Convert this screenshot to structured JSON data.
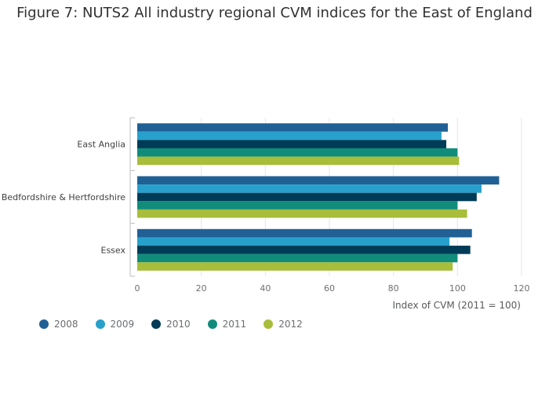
{
  "chart_data": {
    "type": "bar",
    "orientation": "horizontal",
    "title": "Figure 7: NUTS2 All industry regional CVM indices for the East of England",
    "xlabel": "Index of CVM (2011 = 100)",
    "ylabel": "",
    "xlim": [
      0,
      120
    ],
    "xticks": [
      "0",
      "20",
      "40",
      "60",
      "80",
      "100",
      "120"
    ],
    "categories": [
      "East Anglia",
      "Bedfordshire & Hertfordshire",
      "Essex"
    ],
    "series": [
      {
        "name": "2008",
        "color": "#206095",
        "values": [
          97,
          113,
          104.5
        ]
      },
      {
        "name": "2009",
        "color": "#27a0cc",
        "values": [
          95,
          107.5,
          97.5
        ]
      },
      {
        "name": "2010",
        "color": "#003c57",
        "values": [
          96.5,
          106,
          104
        ]
      },
      {
        "name": "2011",
        "color": "#118c7b",
        "values": [
          100,
          100,
          100
        ]
      },
      {
        "name": "2012",
        "color": "#a8bd3a",
        "values": [
          100.5,
          103,
          98.5
        ]
      }
    ],
    "legend_position": "bottom-left",
    "grid": true
  }
}
